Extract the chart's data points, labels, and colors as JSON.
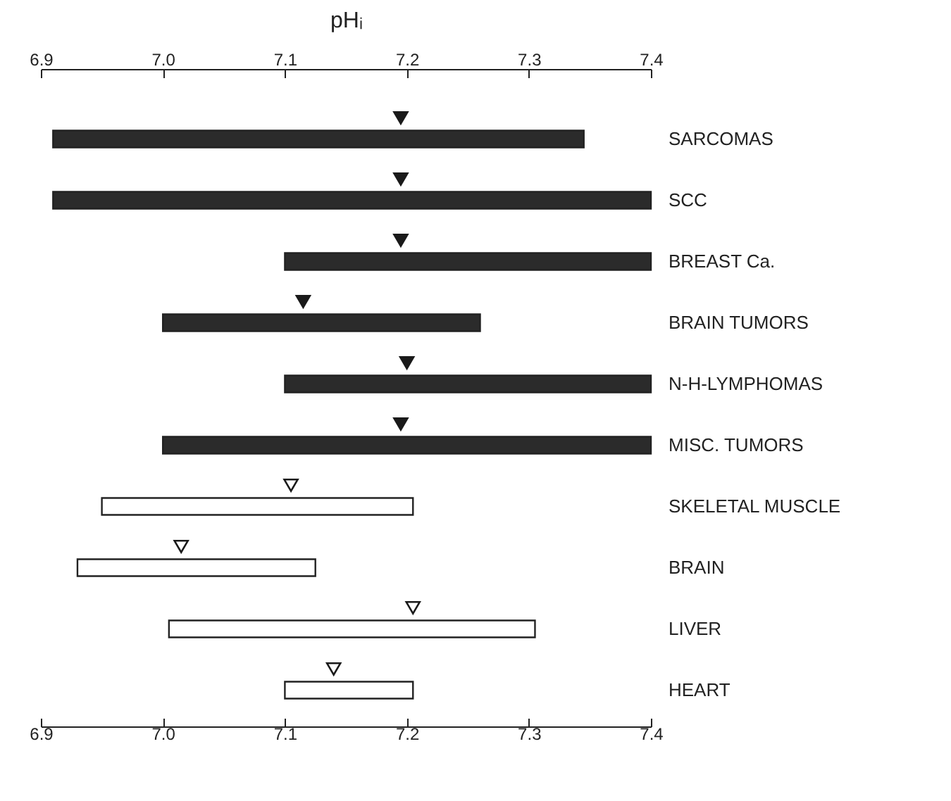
{
  "chart_data": {
    "type": "bar",
    "orientation": "horizontal",
    "x2label": "pHᵢ",
    "categories": [
      "SARCOMAS",
      "SCC",
      "BREAST Ca.",
      "BRAIN TUMORS",
      "N-H-LYMPHOMAS",
      "MISC. TUMORS",
      "SKELETAL MUSCLE",
      "BRAIN",
      "LIVER",
      "HEART"
    ],
    "xlim": [
      6.9,
      7.4
    ],
    "xticks": [
      6.9,
      {
        "value": 7.0,
        "label": "7.0"
      },
      7.1,
      7.2,
      7.3,
      7.4
    ],
    "x2lim": [
      6.9,
      7.4
    ],
    "x2ticks": [
      6.9,
      {
        "value": 7.0,
        "label": "7.0"
      },
      7.1,
      7.2,
      7.3,
      7.4
    ],
    "series": [
      {
        "base": [
          6.91,
          6.91,
          7.1,
          7.0,
          7.1,
          7.0,
          6.95,
          6.93,
          7.005,
          7.1
        ],
        "values": [
          0.435,
          0.49,
          0.3,
          0.26,
          0.3,
          0.4,
          0.255,
          0.195,
          0.3,
          0.105
        ],
        "colors": [
          "#2b2b2b",
          "#2b2b2b",
          "#2b2b2b",
          "#2b2b2b",
          "#2b2b2b",
          "#2b2b2b",
          "#ffffff",
          "#ffffff",
          "#ffffff",
          "#ffffff"
        ]
      },
      {
        "type": "scatter",
        "marker": "triangle",
        "x": [
          "SARCOMAS",
          "SCC",
          "BREAST Ca.",
          "BRAIN TUMORS",
          "N-H-LYMPHOMAS",
          "MISC. TUMORS",
          "SKELETAL MUSCLE",
          "BRAIN",
          "LIVER",
          "HEART"
        ],
        "values": [
          7.195,
          7.195,
          7.195,
          7.115,
          7.2,
          7.195,
          7.105,
          7.015,
          7.205,
          7.14
        ],
        "colors": [
          "#1a1a1a",
          "#1a1a1a",
          "#1a1a1a",
          "#1a1a1a",
          "#1a1a1a",
          "#1a1a1a",
          "#ffffff",
          "#ffffff",
          "#ffffff",
          "#ffffff"
        ]
      }
    ],
    "grid": false
  }
}
